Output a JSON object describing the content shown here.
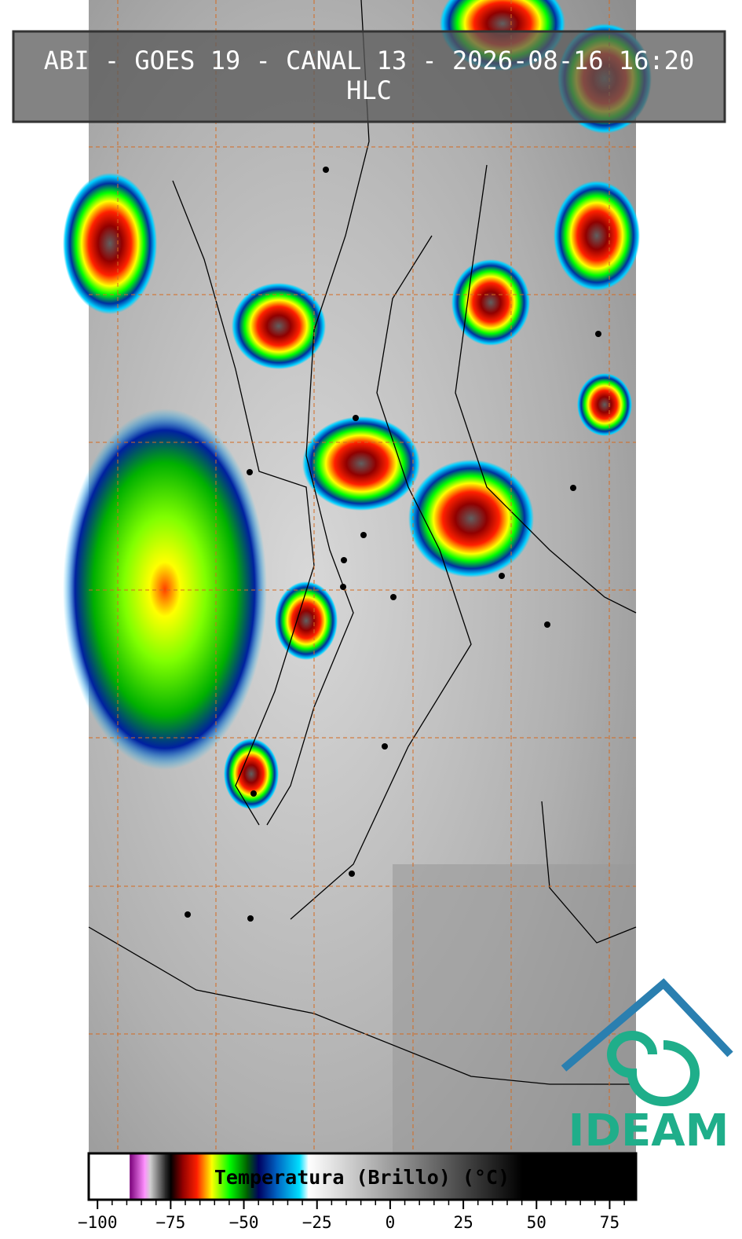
{
  "chart_data": {
    "type": "colorbar",
    "title": "ABI - GOES 19 - CANAL 13 - 2026-08-16 16:20",
    "subtitle": "HLC",
    "xlabel": "Temperatura (Brillo) (°C)",
    "logo": "IDEAM",
    "xlim": [
      -103,
      84
    ],
    "xticks": [
      {
        "value": -100,
        "label": "−100"
      },
      {
        "value": -75,
        "label": "−75"
      },
      {
        "value": -50,
        "label": "−50"
      },
      {
        "value": -25,
        "label": "−25"
      },
      0,
      25,
      50,
      75
    ],
    "minor_xticks": [
      -95,
      -90,
      -85,
      -80,
      -70,
      -65,
      -60,
      -55,
      -45,
      -40,
      -35,
      -30,
      -20,
      -15,
      -10,
      -5,
      5,
      10,
      15,
      20,
      30,
      35,
      40,
      45,
      55,
      60,
      65,
      70,
      80
    ],
    "stops": [
      {
        "value": -103,
        "color": "#ffffff"
      },
      {
        "value": -89,
        "color": "#ffffff"
      },
      {
        "value": -89,
        "color": "#7a007a"
      },
      {
        "value": -84,
        "color": "#ff90ff"
      },
      {
        "value": -82,
        "color": "#d0d0d0"
      },
      {
        "value": -77,
        "color": "#303030"
      },
      {
        "value": -75,
        "color": "#000000"
      },
      {
        "value": -71,
        "color": "#900000"
      },
      {
        "value": -66,
        "color": "#ff2000"
      },
      {
        "value": -61,
        "color": "#ffff00"
      },
      {
        "value": -55,
        "color": "#00ff00"
      },
      {
        "value": -49,
        "color": "#006000"
      },
      {
        "value": -45,
        "color": "#000060"
      },
      {
        "value": -39,
        "color": "#0060c0"
      },
      {
        "value": -31,
        "color": "#00e0ff"
      },
      {
        "value": -28,
        "color": "#ffffff"
      },
      {
        "value": 45,
        "color": "#000000"
      },
      {
        "value": 84,
        "color": "#000000"
      }
    ]
  }
}
